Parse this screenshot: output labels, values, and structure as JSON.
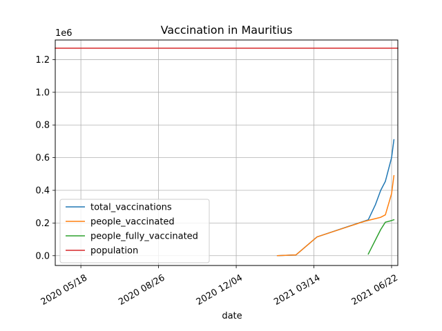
{
  "chart_data": {
    "type": "line",
    "title": "Vaccination in Mauritius",
    "xlabel": "date",
    "ylabel": "",
    "y_offset_label": "1e6",
    "x_ticks": [
      "2020-05-18",
      "2020-08-26",
      "2020-12-04",
      "2021-03-14",
      "2021-06-22"
    ],
    "x_tick_labels": [
      "2020 05/18",
      "2020 08/26",
      "2020 12/04",
      "2021 03/14",
      "2021 06/22"
    ],
    "xlim": [
      "2020-04-15",
      "2021-06-30"
    ],
    "y_ticks": [
      0.0,
      0.2,
      0.4,
      0.6,
      0.8,
      1.0,
      1.2
    ],
    "y_tick_labels": [
      "0.0",
      "0.2",
      "0.4",
      "0.6",
      "0.8",
      "1.0",
      "1.2"
    ],
    "ylim": [
      -0.06,
      1.32
    ],
    "y_scale": 1000000,
    "grid": true,
    "legend_position": "lower-left",
    "series": [
      {
        "name": "total_vaccinations",
        "color": "#1f77b4",
        "points": [
          [
            "2021-01-26",
            0.0
          ],
          [
            "2021-02-19",
            0.005
          ],
          [
            "2021-03-18",
            0.115
          ],
          [
            "2021-05-23",
            0.22
          ],
          [
            "2021-06-01",
            0.31
          ],
          [
            "2021-06-08",
            0.4
          ],
          [
            "2021-06-14",
            0.455
          ],
          [
            "2021-06-22",
            0.6
          ],
          [
            "2021-06-25",
            0.71
          ]
        ]
      },
      {
        "name": "people_vaccinated",
        "color": "#ff7f0e",
        "points": [
          [
            "2021-01-26",
            0.0
          ],
          [
            "2021-02-19",
            0.005
          ],
          [
            "2021-03-18",
            0.115
          ],
          [
            "2021-05-18",
            0.21
          ],
          [
            "2021-06-08",
            0.235
          ],
          [
            "2021-06-14",
            0.25
          ],
          [
            "2021-06-22",
            0.38
          ],
          [
            "2021-06-25",
            0.49
          ]
        ]
      },
      {
        "name": "people_fully_vaccinated",
        "color": "#2ca02c",
        "points": [
          [
            "2021-05-23",
            0.01
          ],
          [
            "2021-06-08",
            0.16
          ],
          [
            "2021-06-14",
            0.205
          ],
          [
            "2021-06-22",
            0.215
          ],
          [
            "2021-06-25",
            0.22
          ]
        ]
      },
      {
        "name": "population",
        "color": "#d62728",
        "points": [
          [
            "2020-04-15",
            1.27
          ],
          [
            "2021-06-30",
            1.27
          ]
        ]
      }
    ]
  }
}
